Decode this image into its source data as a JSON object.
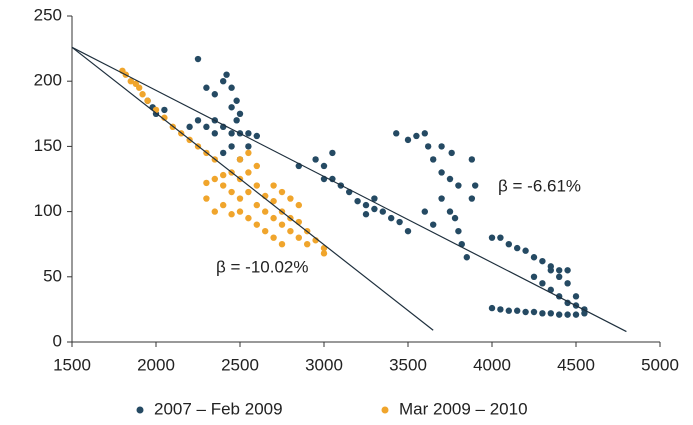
{
  "chart_data": {
    "type": "scatter",
    "xlim": [
      1500,
      5000
    ],
    "xticks": [
      1500,
      2000,
      2500,
      3000,
      3500,
      4000,
      4500,
      5000
    ],
    "ylim": [
      0,
      250
    ],
    "yticks": [
      0,
      50,
      100,
      150,
      200,
      250
    ],
    "series": [
      {
        "name": "2007 – Feb 2009",
        "color": "#254a63",
        "x": [
          1950,
          1980,
          2000,
          2050,
          2250,
          2300,
          2350,
          2400,
          2420,
          2450,
          2480,
          2500,
          2350,
          2400,
          2450,
          2300,
          2250,
          2200,
          2500,
          2550,
          2600,
          2550,
          2450,
          2500,
          2400,
          2350,
          2450,
          2480,
          2850,
          2950,
          3000,
          3050,
          3000,
          3100,
          3050,
          3150,
          3200,
          3250,
          3300,
          3350,
          3400,
          3300,
          3250,
          3450,
          3500,
          3430,
          3500,
          3550,
          3600,
          3620,
          3650,
          3700,
          3750,
          3800,
          3700,
          3750,
          3800,
          3820,
          3850,
          3780,
          3600,
          3650,
          3880,
          3900,
          3880,
          3760,
          3700,
          4000,
          4050,
          4100,
          4150,
          4200,
          4250,
          4300,
          4350,
          4400,
          4450,
          4250,
          4300,
          4350,
          4400,
          4450,
          4500,
          4550,
          4400,
          4450,
          4500,
          4350,
          4000,
          4050,
          4100,
          4150,
          4200,
          4250,
          4300,
          4350,
          4400,
          4450,
          4500,
          4550
        ],
        "y": [
          185,
          180,
          175,
          178,
          217,
          195,
          190,
          200,
          205,
          195,
          185,
          175,
          170,
          165,
          160,
          165,
          170,
          165,
          160,
          160,
          158,
          150,
          150,
          140,
          145,
          160,
          180,
          170,
          135,
          140,
          135,
          145,
          125,
          120,
          125,
          115,
          108,
          105,
          102,
          100,
          95,
          110,
          98,
          92,
          85,
          160,
          155,
          158,
          160,
          150,
          140,
          130,
          125,
          120,
          110,
          100,
          85,
          75,
          65,
          95,
          100,
          90,
          140,
          120,
          110,
          145,
          150,
          80,
          80,
          75,
          72,
          70,
          65,
          62,
          58,
          55,
          55,
          50,
          45,
          40,
          35,
          30,
          28,
          25,
          50,
          45,
          35,
          55,
          26,
          25,
          24,
          24,
          23,
          23,
          22,
          22,
          21,
          21,
          21,
          22
        ]
      },
      {
        "name": "Mar 2009 – 2010",
        "color": "#f0a52c",
        "x": [
          1800,
          1820,
          1850,
          1880,
          1900,
          1920,
          1950,
          2000,
          2050,
          2100,
          2150,
          2200,
          2250,
          2300,
          2350,
          2300,
          2350,
          2400,
          2400,
          2450,
          2450,
          2500,
          2500,
          2550,
          2550,
          2600,
          2600,
          2650,
          2650,
          2700,
          2700,
          2750,
          2750,
          2800,
          2800,
          2850,
          2850,
          2900,
          2900,
          2950,
          3000,
          3000,
          2400,
          2450,
          2500,
          2550,
          2600,
          2650,
          2700,
          2750,
          2300,
          2350,
          2700,
          2750,
          2800,
          2850,
          2600,
          2500,
          2550
        ],
        "y": [
          208,
          205,
          200,
          198,
          195,
          190,
          185,
          178,
          172,
          165,
          160,
          155,
          150,
          145,
          140,
          122,
          125,
          128,
          120,
          130,
          115,
          125,
          110,
          130,
          115,
          120,
          105,
          112,
          100,
          108,
          95,
          100,
          90,
          95,
          85,
          92,
          80,
          85,
          75,
          78,
          72,
          68,
          105,
          98,
          100,
          95,
          90,
          85,
          80,
          75,
          110,
          100,
          120,
          115,
          110,
          105,
          135,
          140,
          145
        ]
      }
    ],
    "lines": [
      {
        "x": [
          1500,
          4800
        ],
        "y": [
          226,
          8
        ]
      },
      {
        "x": [
          1500,
          3650
        ],
        "y": [
          226,
          9
        ]
      }
    ],
    "annotations": [
      "β = -6.61%",
      "β = -10.02%"
    ]
  }
}
